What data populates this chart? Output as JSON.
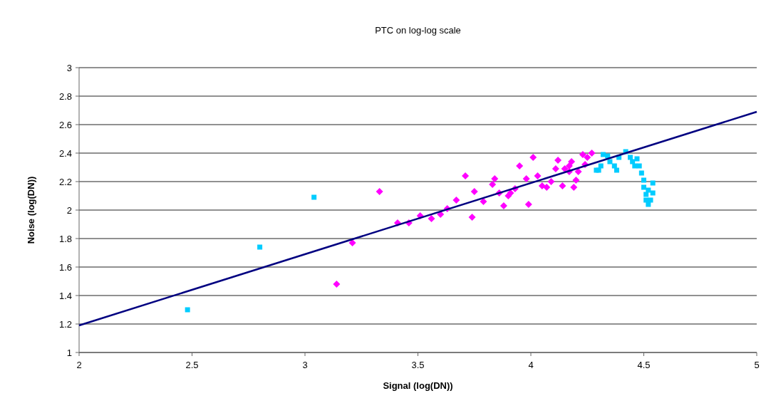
{
  "chart_data": {
    "type": "scatter",
    "title": "PTC on log-log scale",
    "xlabel": "Signal (log(DN))",
    "ylabel": "Noise (log(DN))",
    "xlim": [
      2,
      5
    ],
    "xticks": [
      2,
      2.5,
      3,
      3.5,
      4,
      4.5,
      5
    ],
    "ylim": [
      1,
      3
    ],
    "yticks": [
      1,
      1.2,
      1.4,
      1.6,
      1.8,
      2,
      2.2,
      2.4,
      2.6,
      2.8,
      3
    ],
    "grid": "y",
    "series": [
      {
        "marker": "diamond",
        "color": "#ff00ff",
        "x": [
          3.14,
          3.21,
          3.33,
          3.41,
          3.46,
          3.51,
          3.56,
          3.6,
          3.63,
          3.67,
          3.71,
          3.74,
          3.75,
          3.79,
          3.83,
          3.84,
          3.86,
          3.88,
          3.9,
          3.91,
          3.93,
          3.95,
          3.98,
          3.99,
          4.01,
          4.03,
          4.05,
          4.07,
          4.09,
          4.11,
          4.12,
          4.14,
          4.15,
          4.17,
          4.18,
          4.2,
          4.21,
          4.23,
          4.24,
          4.25,
          4.27,
          4.17,
          4.19
        ],
        "values": [
          1.48,
          1.77,
          2.13,
          1.91,
          1.91,
          1.96,
          1.94,
          1.97,
          2.01,
          2.07,
          2.24,
          1.95,
          2.13,
          2.06,
          2.18,
          2.22,
          2.12,
          2.03,
          2.1,
          2.12,
          2.15,
          2.31,
          2.22,
          2.04,
          2.37,
          2.24,
          2.17,
          2.16,
          2.2,
          2.29,
          2.35,
          2.17,
          2.29,
          2.31,
          2.34,
          2.21,
          2.27,
          2.39,
          2.32,
          2.37,
          2.4,
          2.27,
          2.16
        ]
      },
      {
        "marker": "square",
        "color": "#00ccff",
        "x": [
          2.48,
          2.8,
          3.04,
          4.29,
          4.3,
          4.31,
          4.32,
          4.34,
          4.35,
          4.37,
          4.38,
          4.39,
          4.42,
          4.44,
          4.45,
          4.46,
          4.47,
          4.48,
          4.49,
          4.5,
          4.5,
          4.51,
          4.51,
          4.52,
          4.52,
          4.53,
          4.54,
          4.54
        ],
        "values": [
          1.3,
          1.74,
          2.09,
          2.28,
          2.28,
          2.31,
          2.39,
          2.38,
          2.34,
          2.31,
          2.28,
          2.37,
          2.41,
          2.37,
          2.34,
          2.31,
          2.36,
          2.31,
          2.26,
          2.21,
          2.16,
          2.11,
          2.07,
          2.04,
          2.14,
          2.07,
          2.12,
          2.19
        ]
      },
      {
        "type": "line",
        "marker": "none",
        "color": "#000080",
        "x": [
          2,
          5
        ],
        "values": [
          1.19,
          2.69
        ]
      }
    ]
  }
}
